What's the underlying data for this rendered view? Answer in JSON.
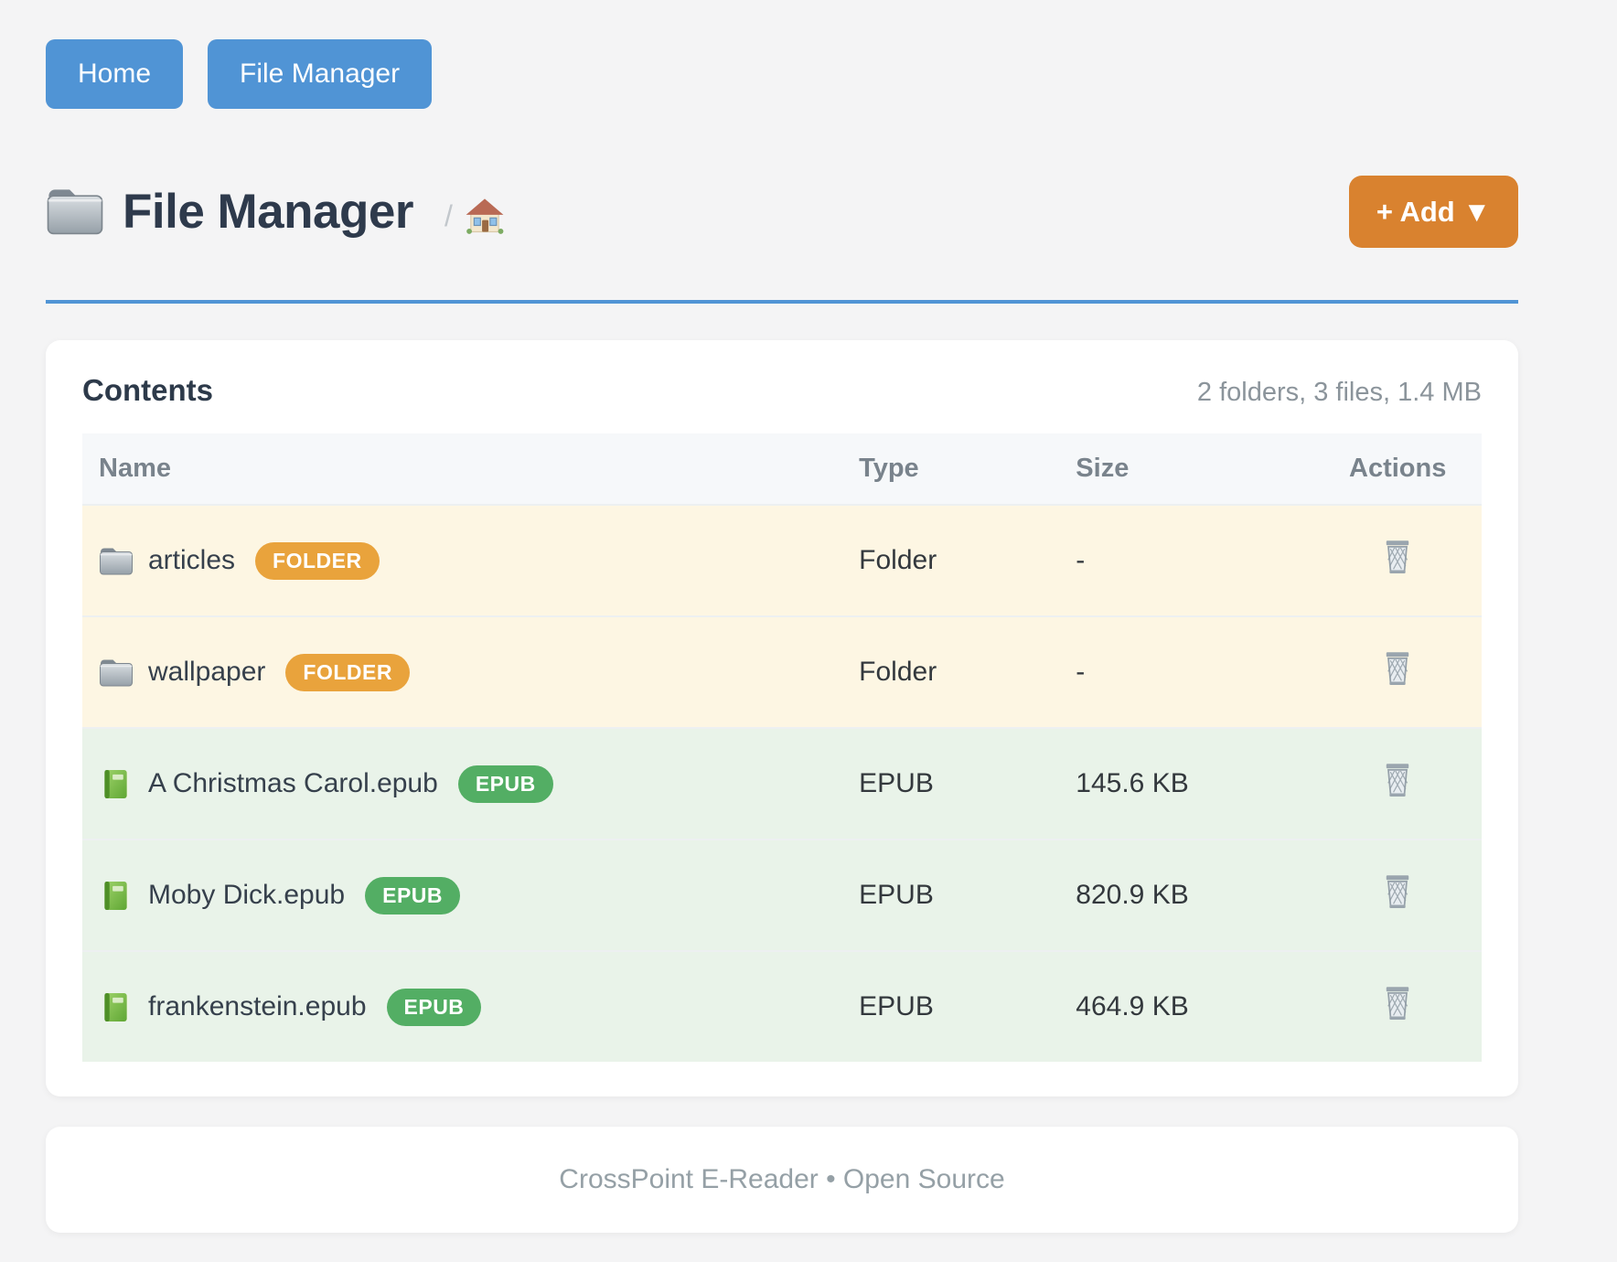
{
  "nav": {
    "home_label": "Home",
    "file_manager_label": "File Manager"
  },
  "header": {
    "title": "File Manager",
    "title_icon": "folder-icon",
    "breadcrumb_separator": "/",
    "breadcrumb_home_icon": "house-icon",
    "add_button_label": "+ Add ▼"
  },
  "contents": {
    "title": "Contents",
    "summary": "2 folders, 3 files, 1.4 MB",
    "columns": [
      "Name",
      "Type",
      "Size",
      "Actions"
    ],
    "delete_icon": "wastebasket-icon",
    "rows": [
      {
        "icon": "folder-icon",
        "name": "articles",
        "badge": "FOLDER",
        "badge_type": "folder",
        "type": "Folder",
        "size": "-"
      },
      {
        "icon": "folder-icon",
        "name": "wallpaper",
        "badge": "FOLDER",
        "badge_type": "folder",
        "type": "Folder",
        "size": "-"
      },
      {
        "icon": "book-icon",
        "name": "A Christmas Carol.epub",
        "badge": "EPUB",
        "badge_type": "epub",
        "type": "EPUB",
        "size": "145.6 KB"
      },
      {
        "icon": "book-icon",
        "name": "Moby Dick.epub",
        "badge": "EPUB",
        "badge_type": "epub",
        "type": "EPUB",
        "size": "820.9 KB"
      },
      {
        "icon": "book-icon",
        "name": "frankenstein.epub",
        "badge": "EPUB",
        "badge_type": "epub",
        "type": "EPUB",
        "size": "464.9 KB"
      }
    ]
  },
  "footer": {
    "text": "CrossPoint E-Reader • Open Source"
  },
  "colors": {
    "accent_blue": "#5094d5",
    "accent_orange": "#d9822f",
    "badge_folder": "#e9a33c",
    "badge_epub": "#53ae64",
    "row_folder_bg": "#fdf6e3",
    "row_epub_bg": "#e9f3e9",
    "title_text": "#2e3a4c",
    "muted_text": "#8b949b"
  }
}
